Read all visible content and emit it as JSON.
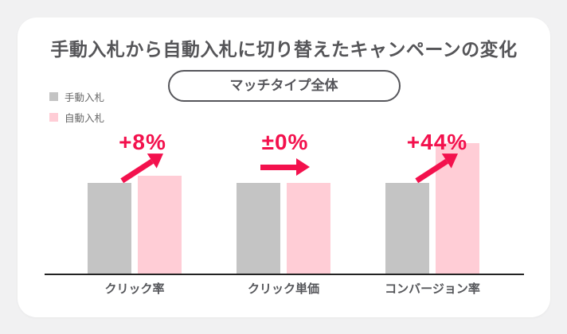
{
  "page": {
    "background": "#F1F1F2"
  },
  "header": {
    "title": "手動入札から自動入札に切り替えたキャンペーンの変化",
    "badge_label": "マッチタイプ全体"
  },
  "legend": {
    "items": [
      {
        "label": "手動入札",
        "color": "#C4C4C4"
      },
      {
        "label": "自動入札",
        "color": "#FFCDD6"
      }
    ]
  },
  "colors": {
    "accent_red": "#F3114D",
    "manual_bar": "#C4C4C4",
    "auto_bar": "#FFCDD6",
    "text_dark": "#55565A",
    "axis": "#222222",
    "card_background": "#FFFFFF"
  },
  "chart_data": {
    "type": "bar",
    "title": "手動入札から自動入札に切り替えたキャンペーンの変化",
    "subtitle": "マッチタイプ全体",
    "categories": [
      "クリック率",
      "クリック単価",
      "コンバージョン率"
    ],
    "series": [
      {
        "name": "手動入札",
        "values": [
          100,
          100,
          100
        ],
        "color": "#C4C4C4"
      },
      {
        "name": "自動入札",
        "values": [
          108,
          100,
          144
        ],
        "color": "#FFCDD6"
      }
    ],
    "annotations": [
      {
        "category": "クリック率",
        "label": "+8%",
        "direction": "up"
      },
      {
        "category": "クリック単価",
        "label": "±0%",
        "direction": "flat"
      },
      {
        "category": "コンバージョン率",
        "label": "+44%",
        "direction": "up"
      }
    ],
    "value_scale": "index, 手動入札 = 100",
    "legend_position": "top-left",
    "grid": false,
    "axes": {
      "y_axis_visible": false,
      "x_baseline_visible": true
    }
  }
}
